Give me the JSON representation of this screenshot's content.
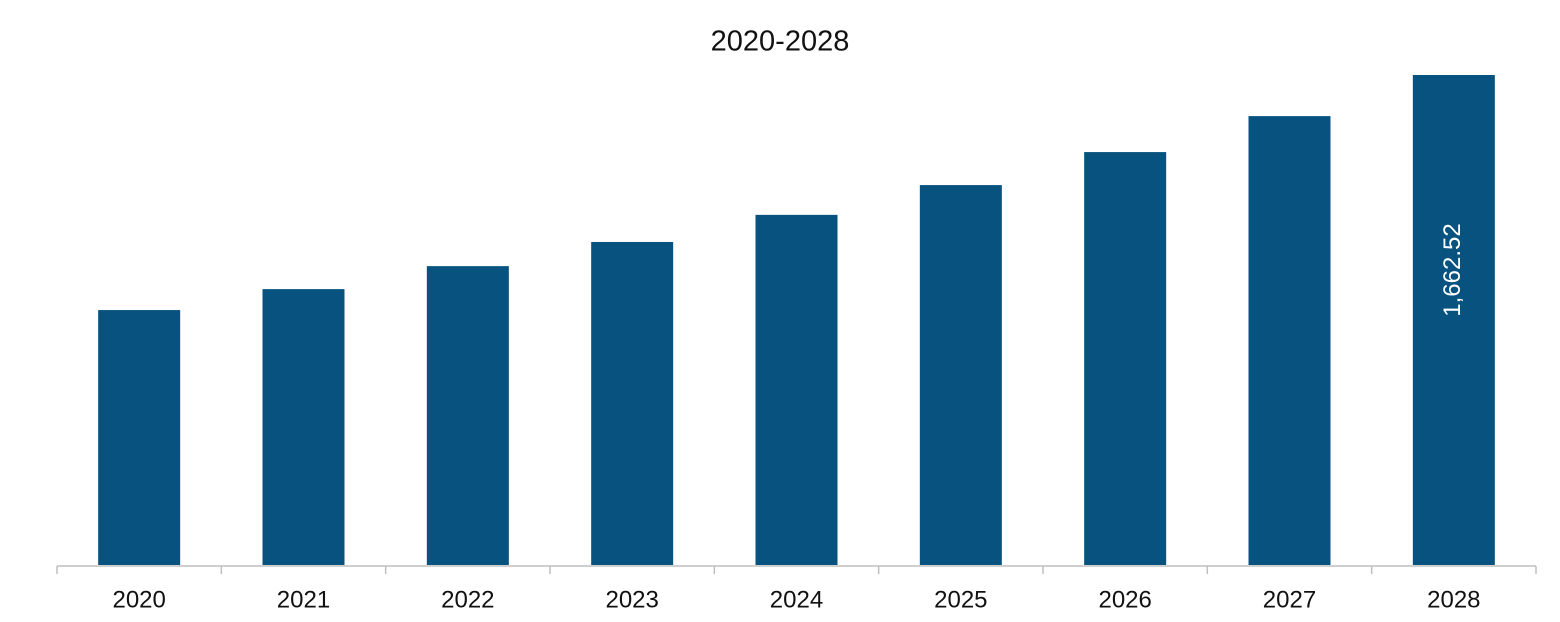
{
  "chart_data": {
    "type": "bar",
    "title": "2020-2028",
    "categories": [
      "2020",
      "2021",
      "2022",
      "2023",
      "2024",
      "2025",
      "2026",
      "2027",
      "2028"
    ],
    "values": [
      865,
      936,
      1014,
      1096,
      1188,
      1289,
      1401,
      1523,
      1662.52
    ],
    "value_labels": [
      null,
      null,
      null,
      null,
      null,
      null,
      null,
      null,
      "1,662.52"
    ],
    "color": "#07527f"
  }
}
